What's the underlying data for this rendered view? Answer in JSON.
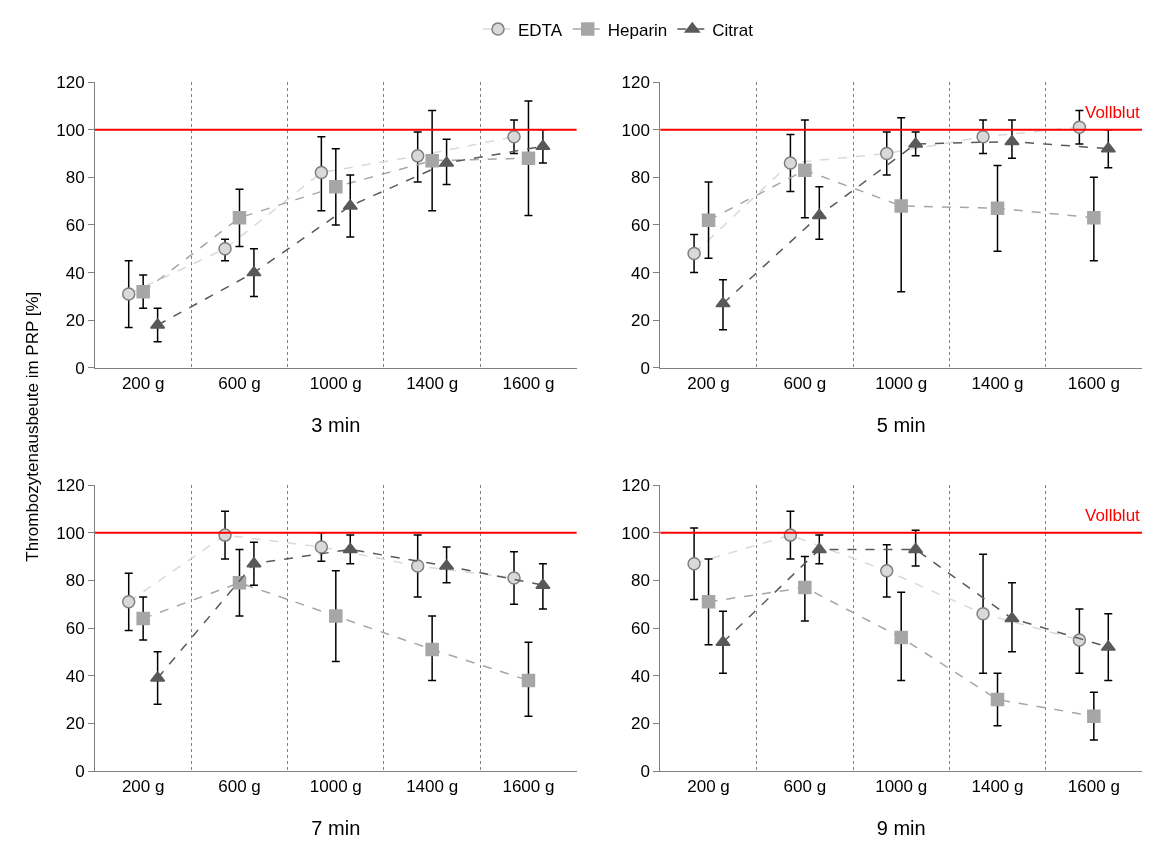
{
  "chart_data": [
    {
      "type": "line",
      "xlabel": "3 min",
      "ylabel": "Thrombozytenausbeute im PRP [%]",
      "categories": [
        "200 g",
        "600 g",
        "1000 g",
        "1400 g",
        "1600 g"
      ],
      "ylim": [
        0,
        120
      ],
      "yticks": [
        0,
        20,
        40,
        60,
        80,
        100,
        120
      ],
      "grid": "x",
      "legend": "top",
      "line_style": "dashed",
      "series": [
        {
          "name": "EDTA",
          "color": "#d9d9d9",
          "marker": "circle",
          "values": [
            31,
            50,
            82,
            89,
            97
          ],
          "errors": [
            [
              17,
              45
            ],
            [
              45,
              54
            ],
            [
              66,
              97
            ],
            [
              78,
              99
            ],
            [
              90,
              104
            ]
          ]
        },
        {
          "name": "Heparin",
          "color": "#a6a6a6",
          "marker": "square",
          "values": [
            32,
            63,
            76,
            87,
            88
          ],
          "errors": [
            [
              25,
              39
            ],
            [
              51,
              75
            ],
            [
              60,
              92
            ],
            [
              66,
              108
            ],
            [
              64,
              112
            ]
          ]
        },
        {
          "name": "Citrat",
          "color": "#595959",
          "marker": "triangle",
          "values": [
            18,
            40,
            68,
            86,
            93
          ],
          "errors": [
            [
              11,
              25
            ],
            [
              30,
              50
            ],
            [
              55,
              81
            ],
            [
              77,
              96
            ],
            [
              86,
              100
            ]
          ]
        }
      ],
      "ref_lines": [
        {
          "axis": "y",
          "value": 100,
          "color": "#ff0000"
        }
      ]
    },
    {
      "type": "line",
      "xlabel": "5 min",
      "categories": [
        "200 g",
        "600 g",
        "1000 g",
        "1400 g",
        "1600 g"
      ],
      "ylim": [
        0,
        120
      ],
      "yticks": [
        0,
        20,
        40,
        60,
        80,
        100,
        120
      ],
      "grid": "x",
      "line_style": "dashed",
      "series": [
        {
          "color": "#d9d9d9",
          "marker": "circle",
          "values": [
            48,
            86,
            90,
            97,
            101
          ],
          "errors": [
            [
              40,
              56
            ],
            [
              74,
              98
            ],
            [
              81,
              99
            ],
            [
              90,
              104
            ],
            [
              94,
              108
            ]
          ]
        },
        {
          "color": "#a6a6a6",
          "marker": "square",
          "values": [
            62,
            83,
            68,
            67,
            63
          ],
          "errors": [
            [
              46,
              78
            ],
            [
              63,
              104
            ],
            [
              32,
              105
            ],
            [
              49,
              85
            ],
            [
              45,
              80
            ]
          ]
        },
        {
          "color": "#595959",
          "marker": "triangle",
          "values": [
            27,
            64,
            94,
            95,
            92
          ],
          "errors": [
            [
              16,
              37
            ],
            [
              54,
              76
            ],
            [
              89,
              99
            ],
            [
              88,
              104
            ],
            [
              84,
              100
            ]
          ]
        }
      ],
      "ref_lines": [
        {
          "axis": "y",
          "value": 100,
          "label": "Vollblut",
          "color": "#ff0000"
        }
      ]
    },
    {
      "type": "line",
      "xlabel": "7 min",
      "categories": [
        "200 g",
        "600 g",
        "1000 g",
        "1400 g",
        "1600 g"
      ],
      "ylim": [
        0,
        120
      ],
      "yticks": [
        0,
        20,
        40,
        60,
        80,
        100,
        120
      ],
      "grid": "x",
      "line_style": "dashed",
      "series": [
        {
          "color": "#d9d9d9",
          "marker": "circle",
          "values": [
            71,
            99,
            94,
            86,
            81
          ],
          "errors": [
            [
              59,
              83
            ],
            [
              89,
              109
            ],
            [
              88,
              100
            ],
            [
              73,
              99
            ],
            [
              70,
              92
            ]
          ]
        },
        {
          "color": "#a6a6a6",
          "marker": "square",
          "values": [
            64,
            79,
            65,
            51,
            38
          ],
          "errors": [
            [
              55,
              73
            ],
            [
              65,
              93
            ],
            [
              46,
              84
            ],
            [
              38,
              65
            ],
            [
              23,
              54
            ]
          ]
        },
        {
          "color": "#595959",
          "marker": "triangle",
          "values": [
            39,
            87,
            93,
            86,
            78
          ],
          "errors": [
            [
              28,
              50
            ],
            [
              78,
              96
            ],
            [
              87,
              99
            ],
            [
              79,
              94
            ],
            [
              68,
              87
            ]
          ]
        }
      ],
      "ref_lines": [
        {
          "axis": "y",
          "value": 100,
          "color": "#ff0000"
        }
      ]
    },
    {
      "type": "line",
      "xlabel": "9 min",
      "categories": [
        "200 g",
        "600 g",
        "1000 g",
        "1400 g",
        "1600 g"
      ],
      "ylim": [
        0,
        120
      ],
      "yticks": [
        0,
        20,
        40,
        60,
        80,
        100,
        120
      ],
      "grid": "x",
      "line_style": "dashed",
      "series": [
        {
          "color": "#d9d9d9",
          "marker": "circle",
          "values": [
            87,
            99,
            84,
            66,
            55
          ],
          "errors": [
            [
              72,
              102
            ],
            [
              89,
              109
            ],
            [
              73,
              95
            ],
            [
              41,
              91
            ],
            [
              41,
              68
            ]
          ]
        },
        {
          "color": "#a6a6a6",
          "marker": "square",
          "values": [
            71,
            77,
            56,
            30,
            23
          ],
          "errors": [
            [
              53,
              89
            ],
            [
              63,
              90
            ],
            [
              38,
              75
            ],
            [
              19,
              41
            ],
            [
              13,
              33
            ]
          ]
        },
        {
          "color": "#595959",
          "marker": "triangle",
          "values": [
            54,
            93,
            93,
            64,
            52
          ],
          "errors": [
            [
              41,
              67
            ],
            [
              87,
              99
            ],
            [
              86,
              101
            ],
            [
              50,
              79
            ],
            [
              38,
              66
            ]
          ]
        }
      ],
      "ref_lines": [
        {
          "axis": "y",
          "value": 100,
          "label": "Vollblut",
          "color": "#ff0000"
        }
      ]
    }
  ]
}
